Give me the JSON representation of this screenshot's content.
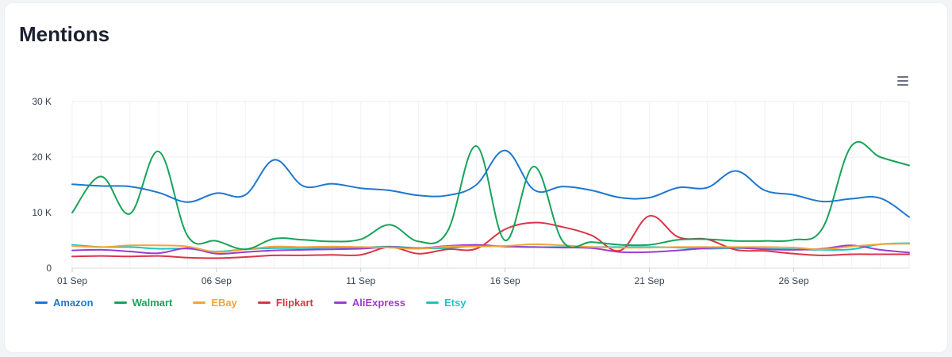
{
  "header": {
    "title": "Mentions"
  },
  "toolbar": {
    "menu_icon": "hamburger-menu-icon"
  },
  "chart_data": {
    "type": "line",
    "title": "Mentions",
    "xlabel": "",
    "ylabel": "",
    "ylim": [
      0,
      30000
    ],
    "y_ticks": [
      0,
      10000,
      20000,
      30000
    ],
    "y_tick_labels": [
      "0",
      "10 K",
      "20 K",
      "30 K"
    ],
    "x_tick_labels": [
      "01 Sep",
      "06 Sep",
      "11 Sep",
      "16 Sep",
      "21 Sep",
      "26 Sep"
    ],
    "x_tick_days": [
      1,
      6,
      11,
      16,
      21,
      26
    ],
    "x": [
      1,
      2,
      3,
      4,
      5,
      6,
      7,
      8,
      9,
      10,
      11,
      12,
      13,
      14,
      15,
      16,
      17,
      18,
      19,
      20,
      21,
      22,
      23,
      24,
      25,
      26,
      27,
      28,
      29,
      30
    ],
    "grid": true,
    "legend_position": "bottom-left",
    "series": [
      {
        "name": "Amazon",
        "color": "#1f77d0",
        "values": [
          15100,
          14800,
          14700,
          13600,
          11900,
          13500,
          13200,
          19500,
          14800,
          15200,
          14400,
          14000,
          13100,
          13100,
          15000,
          21200,
          14100,
          14700,
          14000,
          12700,
          12700,
          14500,
          14500,
          17500,
          14000,
          13200,
          12000,
          12500,
          12600,
          9200
        ]
      },
      {
        "name": "Walmart",
        "color": "#17a35a",
        "values": [
          10000,
          16500,
          9800,
          21000,
          5800,
          4900,
          3400,
          5300,
          5100,
          4800,
          5200,
          7800,
          4800,
          6600,
          22000,
          5000,
          18300,
          4800,
          4700,
          4200,
          4200,
          5100,
          5200,
          4900,
          4900,
          5100,
          7200,
          22000,
          20000,
          18500
        ]
      },
      {
        "name": "EBay",
        "color": "#f2a53a",
        "values": [
          4000,
          3800,
          4100,
          4100,
          3900,
          2900,
          3400,
          3900,
          3800,
          3900,
          3800,
          3700,
          3500,
          3900,
          3900,
          4000,
          4300,
          4100,
          3800,
          3700,
          3700,
          3800,
          3800,
          3800,
          3800,
          3700,
          3400,
          3900,
          4300,
          4400
        ]
      },
      {
        "name": "Flipkart",
        "color": "#dc3545",
        "values": [
          2100,
          2200,
          2100,
          2200,
          1900,
          1800,
          2000,
          2300,
          2300,
          2400,
          2400,
          3800,
          2600,
          3400,
          3500,
          7000,
          8200,
          7400,
          5900,
          3200,
          9400,
          5600,
          5200,
          3300,
          3100,
          2600,
          2300,
          2500,
          2500,
          2500
        ]
      },
      {
        "name": "AliExpress",
        "color": "#9b3dd1",
        "values": [
          3200,
          3300,
          3000,
          2700,
          3600,
          2600,
          2900,
          3200,
          3300,
          3400,
          3500,
          3800,
          3600,
          4000,
          4200,
          3900,
          3800,
          3700,
          3600,
          2900,
          2900,
          3200,
          3600,
          3700,
          3400,
          3300,
          3500,
          4100,
          3300,
          2800
        ]
      },
      {
        "name": "Etsy",
        "color": "#1fc5c5",
        "values": [
          4200,
          3800,
          3800,
          3500,
          3500,
          3000,
          3400,
          3600,
          3600,
          3700,
          3700,
          3900,
          3600,
          3600,
          4000,
          3900,
          3800,
          3800,
          3800,
          3800,
          3800,
          3700,
          3500,
          3600,
          3500,
          3400,
          3300,
          3400,
          4300,
          4500
        ]
      }
    ]
  }
}
